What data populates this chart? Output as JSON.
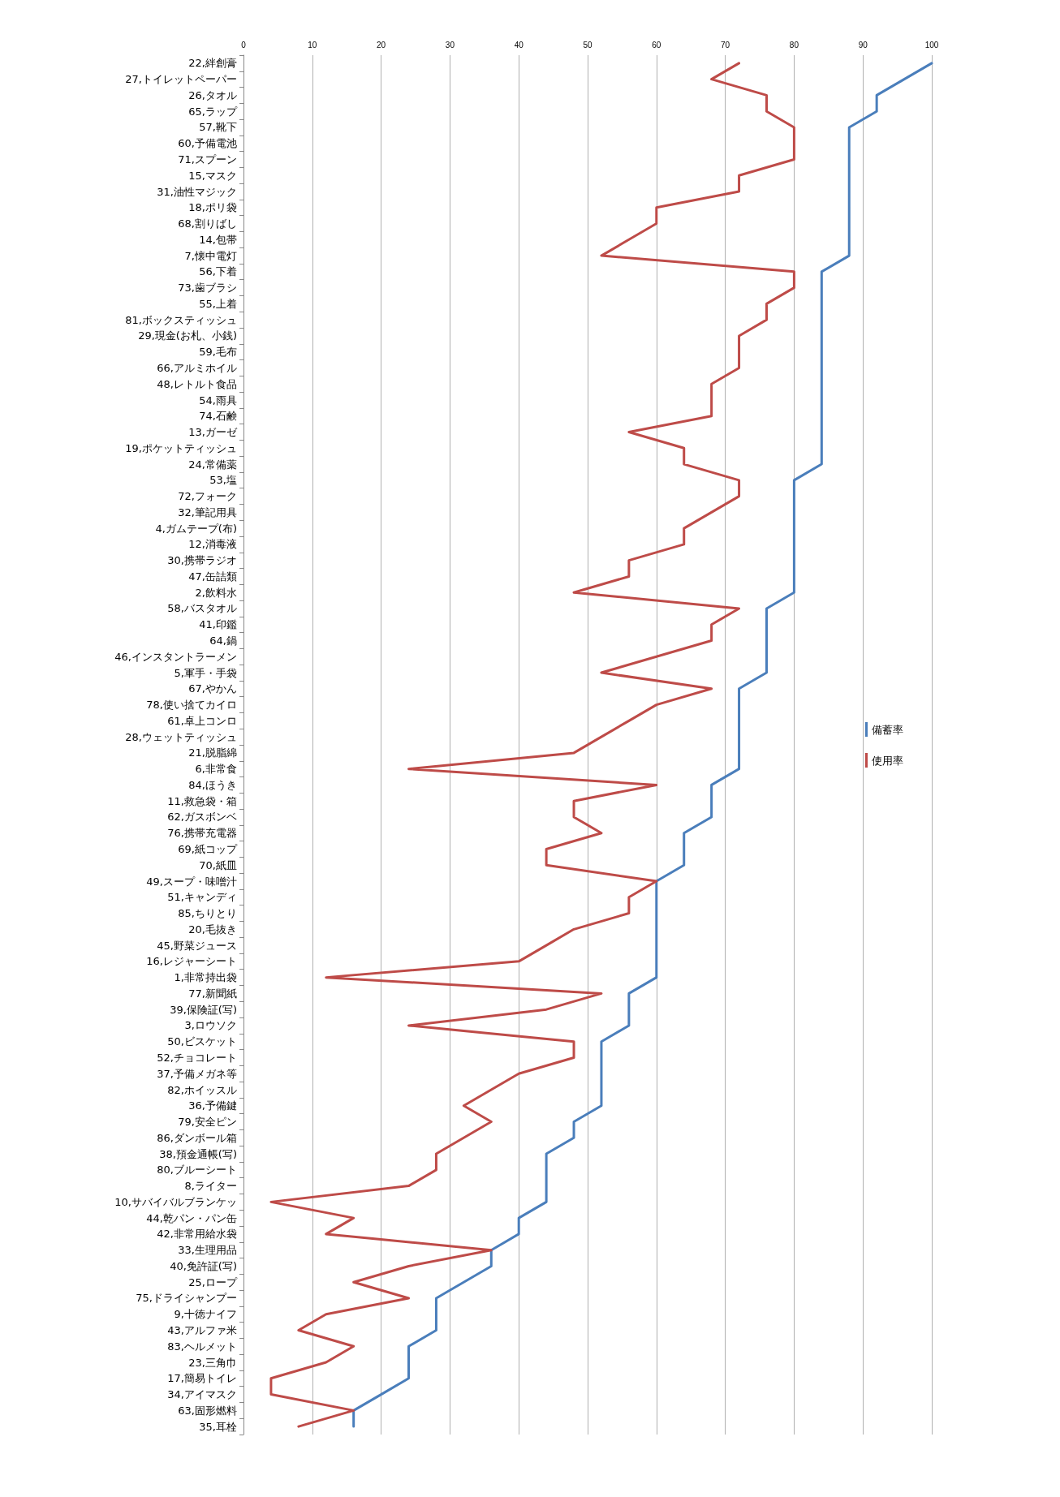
{
  "chart_data": {
    "type": "line",
    "orientation": "horizontal",
    "categories": [
      "22,絆創膏",
      "27,トイレットペーパー",
      "26,タオル",
      "65,ラップ",
      "57,靴下",
      "60,予備電池",
      "71,スプーン",
      "15,マスク",
      "31,油性マジック",
      "18,ポリ袋",
      "68,割りばし",
      "14,包帯",
      "7,懐中電灯",
      "56,下着",
      "73,歯ブラシ",
      "55,上着",
      "81,ボックスティッシュ",
      "29,現金(お札、小銭)",
      "59,毛布",
      "66,アルミホイル",
      "48,レトルト食品",
      "54,雨具",
      "74,石鹸",
      "13,ガーゼ",
      "19,ポケットティッシュ",
      "24,常備薬",
      "53,塩",
      "72,フォーク",
      "32,筆記用具",
      "4,ガムテープ(布)",
      "12,消毒液",
      "30,携帯ラジオ",
      "47,缶詰類",
      "2,飲料水",
      "58,バスタオル",
      "41,印鑑",
      "64,鍋",
      "46,インスタントラーメン",
      "5,軍手・手袋",
      "67,やかん",
      "78,使い捨てカイロ",
      "61,卓上コンロ",
      "28,ウェットティッシュ",
      "21,脱脂綿",
      "6,非常食",
      "84,ほうき",
      "11,救急袋・箱",
      "62,ガスボンベ",
      "76,携帯充電器",
      "69,紙コップ",
      "70,紙皿",
      "49,スープ・味噌汁",
      "51,キャンディ",
      "85,ちりとり",
      "20,毛抜き",
      "45,野菜ジュース",
      "16,レジャーシート",
      "1,非常持出袋",
      "77,新聞紙",
      "39,保険証(写)",
      "3,ロウソク",
      "50,ビスケット",
      "52,チョコレート",
      "37,予備メガネ等",
      "82,ホイッスル",
      "36,予備鍵",
      "79,安全ピン",
      "86,ダンボール箱",
      "38,預金通帳(写)",
      "80,ブルーシート",
      "8,ライター",
      "10,サバイバルブランケッ",
      "44,乾パン・パン缶",
      "42,非常用給水袋",
      "33,生理用品",
      "40,免許証(写)",
      "25,ロープ",
      "75,ドライシャンプー",
      "9,十徳ナイフ",
      "43,アルファ米",
      "83,ヘルメット",
      "23,三角巾",
      "17,簡易トイレ",
      "34,アイマスク",
      "63,固形燃料",
      "35,耳栓"
    ],
    "series": [
      {
        "name": "備蓄率",
        "color": "#4a7ebb",
        "values": [
          100,
          96,
          92,
          92,
          88,
          88,
          88,
          88,
          88,
          88,
          88,
          88,
          88,
          84,
          84,
          84,
          84,
          84,
          84,
          84,
          84,
          84,
          84,
          84,
          84,
          84,
          80,
          80,
          80,
          80,
          80,
          80,
          80,
          80,
          76,
          76,
          76,
          76,
          76,
          72,
          72,
          72,
          72,
          72,
          72,
          68,
          68,
          68,
          64,
          64,
          64,
          60,
          60,
          60,
          60,
          60,
          60,
          60,
          56,
          56,
          56,
          52,
          52,
          52,
          52,
          52,
          48,
          48,
          44,
          44,
          44,
          44,
          40,
          40,
          36,
          36,
          32,
          28,
          28,
          28,
          24,
          24,
          24,
          20,
          16,
          16
        ]
      },
      {
        "name": "使用率",
        "color": "#be4b48",
        "values": [
          72,
          68,
          76,
          76,
          80,
          80,
          80,
          72,
          72,
          60,
          60,
          56,
          52,
          80,
          80,
          76,
          76,
          72,
          72,
          72,
          68,
          68,
          68,
          56,
          64,
          64,
          72,
          72,
          68,
          64,
          64,
          56,
          56,
          48,
          72,
          68,
          68,
          60,
          52,
          68,
          60,
          56,
          52,
          48,
          24,
          60,
          48,
          48,
          52,
          44,
          44,
          60,
          56,
          56,
          48,
          44,
          40,
          12,
          52,
          44,
          24,
          48,
          48,
          40,
          36,
          32,
          36,
          32,
          28,
          28,
          24,
          4,
          16,
          12,
          36,
          24,
          16,
          24,
          12,
          8,
          16,
          12,
          4,
          4,
          16,
          8
        ]
      }
    ],
    "xlim": [
      0,
      100
    ],
    "xticks": [
      0,
      10,
      20,
      30,
      40,
      50,
      60,
      70,
      80,
      90,
      100
    ],
    "grid": "x",
    "legend": "right",
    "marker": "none",
    "line_style": "solid"
  }
}
